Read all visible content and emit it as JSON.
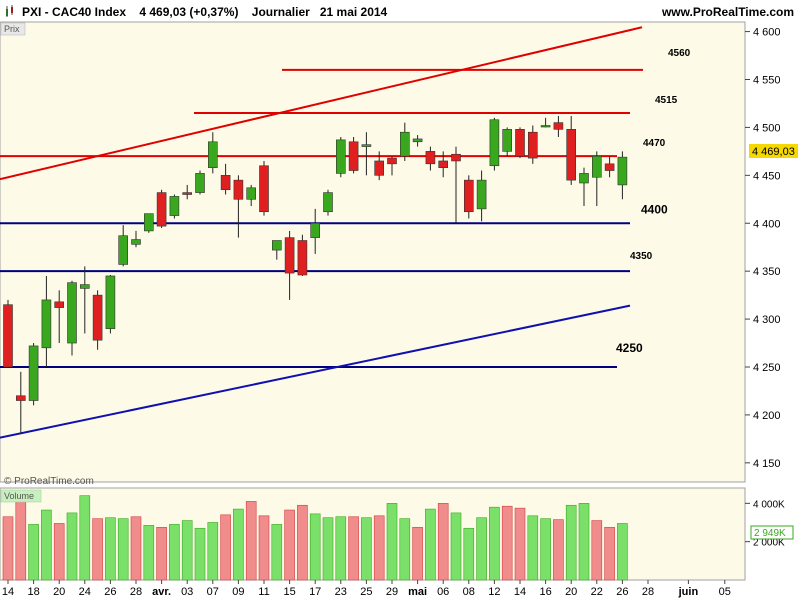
{
  "header": {
    "title": "PXI - CAC40 Index",
    "price": "4 469,03 (+0,37%)",
    "period": "Journalier",
    "date": "21 mai 2014",
    "site": "www.ProRealTime.com"
  },
  "price_panel": {
    "label": "Prix",
    "copyright": "© ProRealTime.com",
    "last_price_badge": "4 469,03",
    "badge_color": "#f5d800",
    "background": "#fdfbe8"
  },
  "volume_panel": {
    "label": "Volume",
    "last_volume_badge": "2 949K",
    "background": "#fdfbe8"
  },
  "chart_data": [
    {
      "type": "candlestick",
      "panel": "price",
      "y_axis": {
        "min": 4130,
        "max": 4610,
        "ticks": [
          4150,
          4200,
          4250,
          4300,
          4350,
          4400,
          4450,
          4500,
          4550,
          4600
        ],
        "tick_labels": [
          "4 150",
          "4 200",
          "4 250",
          "4 300",
          "4 350",
          "4 400",
          "4 450",
          "4 500",
          "4 550",
          "4 600"
        ]
      },
      "x_axis": {
        "ticks": [
          {
            "index": 0,
            "label": "14"
          },
          {
            "index": 2,
            "label": "18"
          },
          {
            "index": 4,
            "label": "20"
          },
          {
            "index": 6,
            "label": "24"
          },
          {
            "index": 8,
            "label": "26"
          },
          {
            "index": 10,
            "label": "28"
          },
          {
            "index": 12,
            "label": "avr."
          },
          {
            "index": 14,
            "label": "03"
          },
          {
            "index": 16,
            "label": "07"
          },
          {
            "index": 18,
            "label": "09"
          },
          {
            "index": 20,
            "label": "11"
          },
          {
            "index": 22,
            "label": "15"
          },
          {
            "index": 24,
            "label": "17"
          },
          {
            "index": 26,
            "label": "23"
          },
          {
            "index": 28,
            "label": "25"
          },
          {
            "index": 30,
            "label": "29"
          },
          {
            "index": 32,
            "label": "mai"
          },
          {
            "index": 34,
            "label": "06"
          },
          {
            "index": 36,
            "label": "08"
          },
          {
            "index": 38,
            "label": "12"
          },
          {
            "index": 40,
            "label": "14"
          },
          {
            "index": 42,
            "label": "16"
          },
          {
            "index": 44,
            "label": "20"
          },
          {
            "index": 46,
            "label": "22"
          },
          {
            "index": 48,
            "label": "26"
          },
          {
            "index": 50,
            "label": "28"
          },
          {
            "index": 53,
            "label": "juin"
          },
          {
            "index": 56,
            "label": "05"
          }
        ]
      },
      "candles": [
        {
          "o": 4315,
          "h": 4320,
          "l": 4250,
          "c": 4250
        },
        {
          "o": 4220,
          "h": 4245,
          "l": 4180,
          "c": 4215
        },
        {
          "o": 4215,
          "h": 4275,
          "l": 4210,
          "c": 4272
        },
        {
          "o": 4270,
          "h": 4345,
          "l": 4250,
          "c": 4320
        },
        {
          "o": 4318,
          "h": 4330,
          "l": 4275,
          "c": 4312
        },
        {
          "o": 4275,
          "h": 4340,
          "l": 4262,
          "c": 4338
        },
        {
          "o": 4332,
          "h": 4355,
          "l": 4285,
          "c": 4336
        },
        {
          "o": 4325,
          "h": 4330,
          "l": 4268,
          "c": 4278
        },
        {
          "o": 4290,
          "h": 4346,
          "l": 4285,
          "c": 4345
        },
        {
          "o": 4357,
          "h": 4398,
          "l": 4355,
          "c": 4387
        },
        {
          "o": 4378,
          "h": 4392,
          "l": 4375,
          "c": 4383
        },
        {
          "o": 4392,
          "h": 4410,
          "l": 4390,
          "c": 4410
        },
        {
          "o": 4432,
          "h": 4435,
          "l": 4395,
          "c": 4397
        },
        {
          "o": 4408,
          "h": 4430,
          "l": 4405,
          "c": 4428
        },
        {
          "o": 4432,
          "h": 4440,
          "l": 4425,
          "c": 4430
        },
        {
          "o": 4432,
          "h": 4455,
          "l": 4430,
          "c": 4452
        },
        {
          "o": 4458,
          "h": 4495,
          "l": 4452,
          "c": 4485
        },
        {
          "o": 4450,
          "h": 4462,
          "l": 4430,
          "c": 4435
        },
        {
          "o": 4445,
          "h": 4450,
          "l": 4385,
          "c": 4425
        },
        {
          "o": 4425,
          "h": 4440,
          "l": 4418,
          "c": 4437
        },
        {
          "o": 4460,
          "h": 4465,
          "l": 4408,
          "c": 4412
        },
        {
          "o": 4372,
          "h": 4380,
          "l": 4362,
          "c": 4382
        },
        {
          "o": 4385,
          "h": 4392,
          "l": 4320,
          "c": 4348
        },
        {
          "o": 4382,
          "h": 4388,
          "l": 4345,
          "c": 4346
        },
        {
          "o": 4385,
          "h": 4415,
          "l": 4368,
          "c": 4400
        },
        {
          "o": 4412,
          "h": 4435,
          "l": 4408,
          "c": 4432
        },
        {
          "o": 4452,
          "h": 4490,
          "l": 4448,
          "c": 4487
        },
        {
          "o": 4485,
          "h": 4490,
          "l": 4452,
          "c": 4455
        },
        {
          "o": 4480,
          "h": 4495,
          "l": 4450,
          "c": 4482
        },
        {
          "o": 4465,
          "h": 4475,
          "l": 4445,
          "c": 4450
        },
        {
          "o": 4468,
          "h": 4470,
          "l": 4450,
          "c": 4462
        },
        {
          "o": 4470,
          "h": 4505,
          "l": 4465,
          "c": 4495
        },
        {
          "o": 4485,
          "h": 4492,
          "l": 4480,
          "c": 4488
        },
        {
          "o": 4475,
          "h": 4480,
          "l": 4455,
          "c": 4462
        },
        {
          "o": 4465,
          "h": 4475,
          "l": 4448,
          "c": 4458
        },
        {
          "o": 4472,
          "h": 4480,
          "l": 4400,
          "c": 4465
        },
        {
          "o": 4445,
          "h": 4450,
          "l": 4405,
          "c": 4412
        },
        {
          "o": 4415,
          "h": 4455,
          "l": 4402,
          "c": 4445
        },
        {
          "o": 4460,
          "h": 4510,
          "l": 4455,
          "c": 4508
        },
        {
          "o": 4475,
          "h": 4500,
          "l": 4470,
          "c": 4498
        },
        {
          "o": 4498,
          "h": 4500,
          "l": 4468,
          "c": 4470
        },
        {
          "o": 4495,
          "h": 4502,
          "l": 4462,
          "c": 4468
        },
        {
          "o": 4502,
          "h": 4510,
          "l": 4500,
          "c": 4502
        },
        {
          "o": 4505,
          "h": 4512,
          "l": 4490,
          "c": 4498
        },
        {
          "o": 4498,
          "h": 4512,
          "l": 4440,
          "c": 4445
        },
        {
          "o": 4442,
          "h": 4458,
          "l": 4418,
          "c": 4452
        },
        {
          "o": 4448,
          "h": 4475,
          "l": 4418,
          "c": 4470
        },
        {
          "o": 4462,
          "h": 4470,
          "l": 4448,
          "c": 4455
        },
        {
          "o": 4440,
          "h": 4475,
          "l": 4425,
          "c": 4469
        }
      ],
      "levels": [
        {
          "value": 4560,
          "label": "4560",
          "color": "#e00000"
        },
        {
          "value": 4515,
          "label": "4515",
          "color": "#e00000"
        },
        {
          "value": 4470,
          "label": "4470",
          "color": "#e00000"
        },
        {
          "value": 4400,
          "label": "4400",
          "color": "#000080"
        },
        {
          "value": 4350,
          "label": "4350",
          "color": "#000080"
        },
        {
          "value": 4250,
          "label": "4250",
          "color": "#000080"
        }
      ],
      "trendlines": [
        {
          "from": {
            "index": 0,
            "value": 4448
          },
          "to": {
            "index": 50,
            "value": 4606
          },
          "color": "#e00000"
        },
        {
          "from": {
            "index": 0,
            "value": 4178
          },
          "to": {
            "index": 50,
            "value": 4318
          },
          "color": "#1010b0"
        }
      ],
      "up_color": "#3aa81e",
      "down_color": "#e02020"
    },
    {
      "type": "bar",
      "panel": "volume",
      "y_axis": {
        "min": 0,
        "max": 4800,
        "ticks": [
          2000,
          4000
        ],
        "tick_labels": [
          "2 000K",
          "4 000K"
        ]
      },
      "values": [
        3300,
        4100,
        2900,
        3650,
        2950,
        3500,
        4400,
        3200,
        3250,
        3200,
        3300,
        2850,
        2750,
        2900,
        3100,
        2700,
        3000,
        3400,
        3700,
        4100,
        3350,
        2900,
        3650,
        3900,
        3450,
        3250,
        3300,
        3300,
        3250,
        3350,
        4000,
        3200,
        2750,
        3700,
        4000,
        3500,
        2700,
        3250,
        3800,
        3850,
        3750,
        3350,
        3200,
        3150,
        3900,
        4000,
        3100,
        2750,
        2949
      ],
      "volume_up": [
        false,
        false,
        true,
        true,
        false,
        true,
        true,
        false,
        true,
        true,
        false,
        true,
        false,
        true,
        true,
        true,
        true,
        false,
        true,
        false,
        false,
        true,
        false,
        false,
        true,
        true,
        true,
        false,
        true,
        false,
        true,
        true,
        false,
        true,
        false,
        true,
        true,
        true,
        true,
        false,
        false,
        true,
        true,
        false,
        true,
        true,
        false,
        false,
        true
      ]
    }
  ]
}
